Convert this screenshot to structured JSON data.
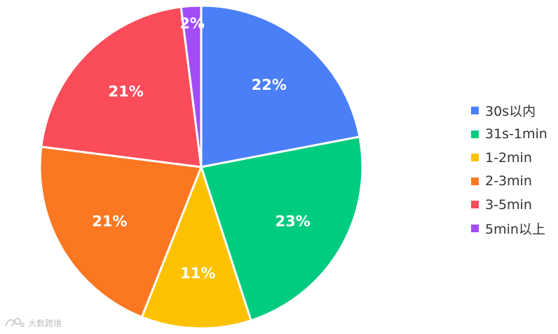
{
  "chart_data": {
    "type": "pie",
    "title": "",
    "slices": [
      {
        "label": "30s以内",
        "value": 22,
        "display": "22%",
        "color": "#4a7ff8"
      },
      {
        "label": "31s-1min",
        "value": 23,
        "display": "23%",
        "color": "#00cc80"
      },
      {
        "label": "1-2min",
        "value": 11,
        "display": "11%",
        "color": "#fcc201"
      },
      {
        "label": "2-3min",
        "value": 21,
        "display": "21%",
        "color": "#fb7722"
      },
      {
        "label": "3-5min",
        "value": 21,
        "display": "21%",
        "color": "#fb4c5a"
      },
      {
        "label": "5min以上",
        "value": 2,
        "display": "2%",
        "color": "#a24cf7"
      }
    ],
    "legend_position": "right",
    "start_angle": "top, clockwise"
  },
  "watermark": {
    "text": "大数跨境"
  }
}
